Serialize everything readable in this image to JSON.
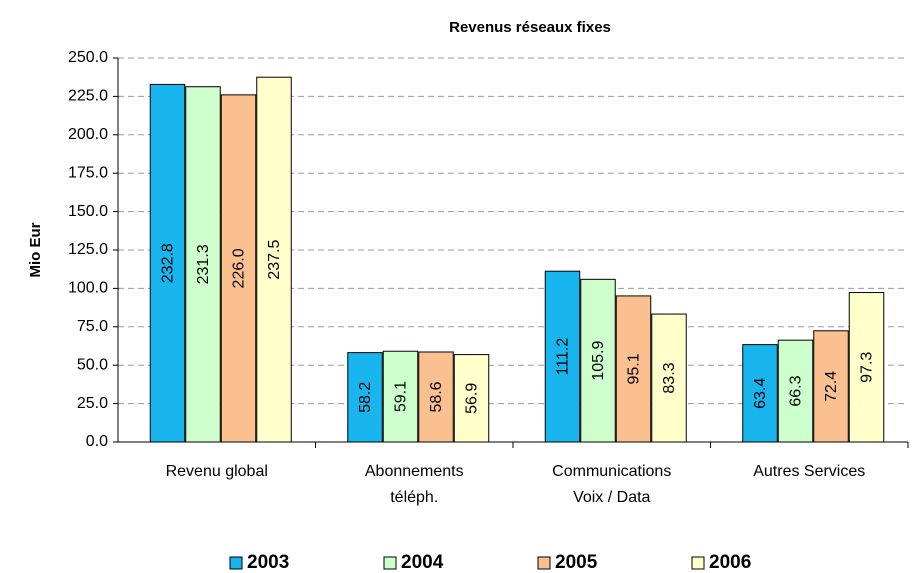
{
  "chart_data": {
    "type": "bar",
    "title": "Revenus réseaux fixes",
    "y_label": "Mio Eur",
    "categories": [
      "Revenu global",
      "Abonnements\ntéléph.",
      "Communications\nVoix / Data",
      "Autres Services"
    ],
    "series": [
      {
        "name": "2003",
        "color": "#19b5ee",
        "values": [
          232.8,
          58.2,
          111.2,
          63.4
        ],
        "value_labels": [
          "232.8",
          "58.2",
          "111.2",
          "63.4"
        ]
      },
      {
        "name": "2004",
        "color": "#ccffcc",
        "values": [
          231.3,
          59.1,
          105.9,
          66.3
        ],
        "value_labels": [
          "231.3",
          "59.1",
          "105.9",
          "66.3"
        ]
      },
      {
        "name": "2005",
        "color": "#fac090",
        "values": [
          226.0,
          58.6,
          95.1,
          72.4
        ],
        "value_labels": [
          "226.0",
          "58.6",
          "95.1",
          "72.4"
        ]
      },
      {
        "name": "2006",
        "color": "#ffffcc",
        "values": [
          237.5,
          56.9,
          83.3,
          97.3
        ],
        "value_labels": [
          "237.5",
          "56.9",
          "83.3",
          "97.3"
        ]
      }
    ],
    "ylim": [
      0,
      250
    ],
    "yticks": [
      {
        "value": 0,
        "label": "0.0"
      },
      {
        "value": 25,
        "label": "25.0"
      },
      {
        "value": 50,
        "label": "50.0"
      },
      {
        "value": 75,
        "label": "75.0"
      },
      {
        "value": 100,
        "label": "100.0"
      },
      {
        "value": 125,
        "label": "125.0"
      },
      {
        "value": 150,
        "label": "150.0"
      },
      {
        "value": 175,
        "label": "175.0"
      },
      {
        "value": 200,
        "label": "200.0"
      },
      {
        "value": 225,
        "label": "225.0"
      },
      {
        "value": 250,
        "label": "250.0"
      }
    ],
    "grid": true,
    "legend": "bottom"
  }
}
